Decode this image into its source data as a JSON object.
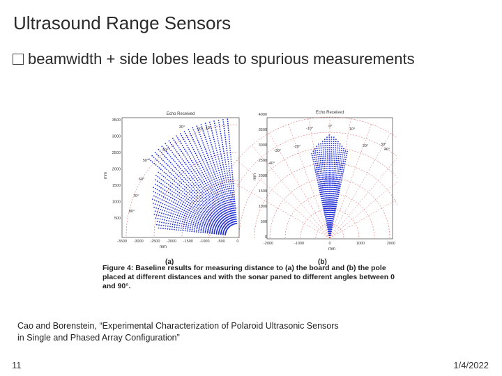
{
  "slide": {
    "title": "Ultrasound Range Sensors",
    "bullet": "beamwidth + side lobes leads to spurious measurements",
    "citation": "Cao and Borenstein, “Experimental Characterization of Polaroid Ultrasonic Sensors in Single and Phased Array Configuration”",
    "page_number": "11",
    "date": "1/4/2022"
  },
  "figure": {
    "plot_a": {
      "title": "Echo Received",
      "ylabel": "mm",
      "xlabel": "mm",
      "panel_label": "(a)",
      "y_ticks": [
        "3500",
        "3000",
        "2500",
        "2000",
        "1500",
        "1000",
        "500"
      ],
      "x_ticks": [
        "-3500",
        "-3000",
        "-2500",
        "-2000",
        "-1500",
        "-1000",
        "-500",
        "0"
      ],
      "angle_labels": [
        "10°",
        "20°",
        "30°",
        "40°",
        "50°",
        "60°",
        "70°",
        "80°"
      ]
    },
    "plot_b": {
      "title": "Echo Received",
      "ylabel": "mm",
      "xlabel": "mm",
      "panel_label": "(b)",
      "y_ticks": [
        "4000",
        "3500",
        "3000",
        "2500",
        "2000",
        "1500",
        "1000",
        "500",
        "0"
      ],
      "x_ticks": [
        "-2000",
        "-1000",
        "0",
        "1000",
        "2000"
      ],
      "angle_labels": [
        "0°",
        "-10°",
        "10°",
        "-20°",
        "20°",
        "-30°",
        "30°",
        "-40°",
        "40°"
      ]
    },
    "caption_bold": "Figure 4:",
    "caption_text": " Baseline results for measuring distance to (a) the board and (b) the pole placed at different distances and with the sonar paned to different angles between 0 and 90°.",
    "colors": {
      "data": "#1f2fd6",
      "grid": "#d94545"
    }
  }
}
